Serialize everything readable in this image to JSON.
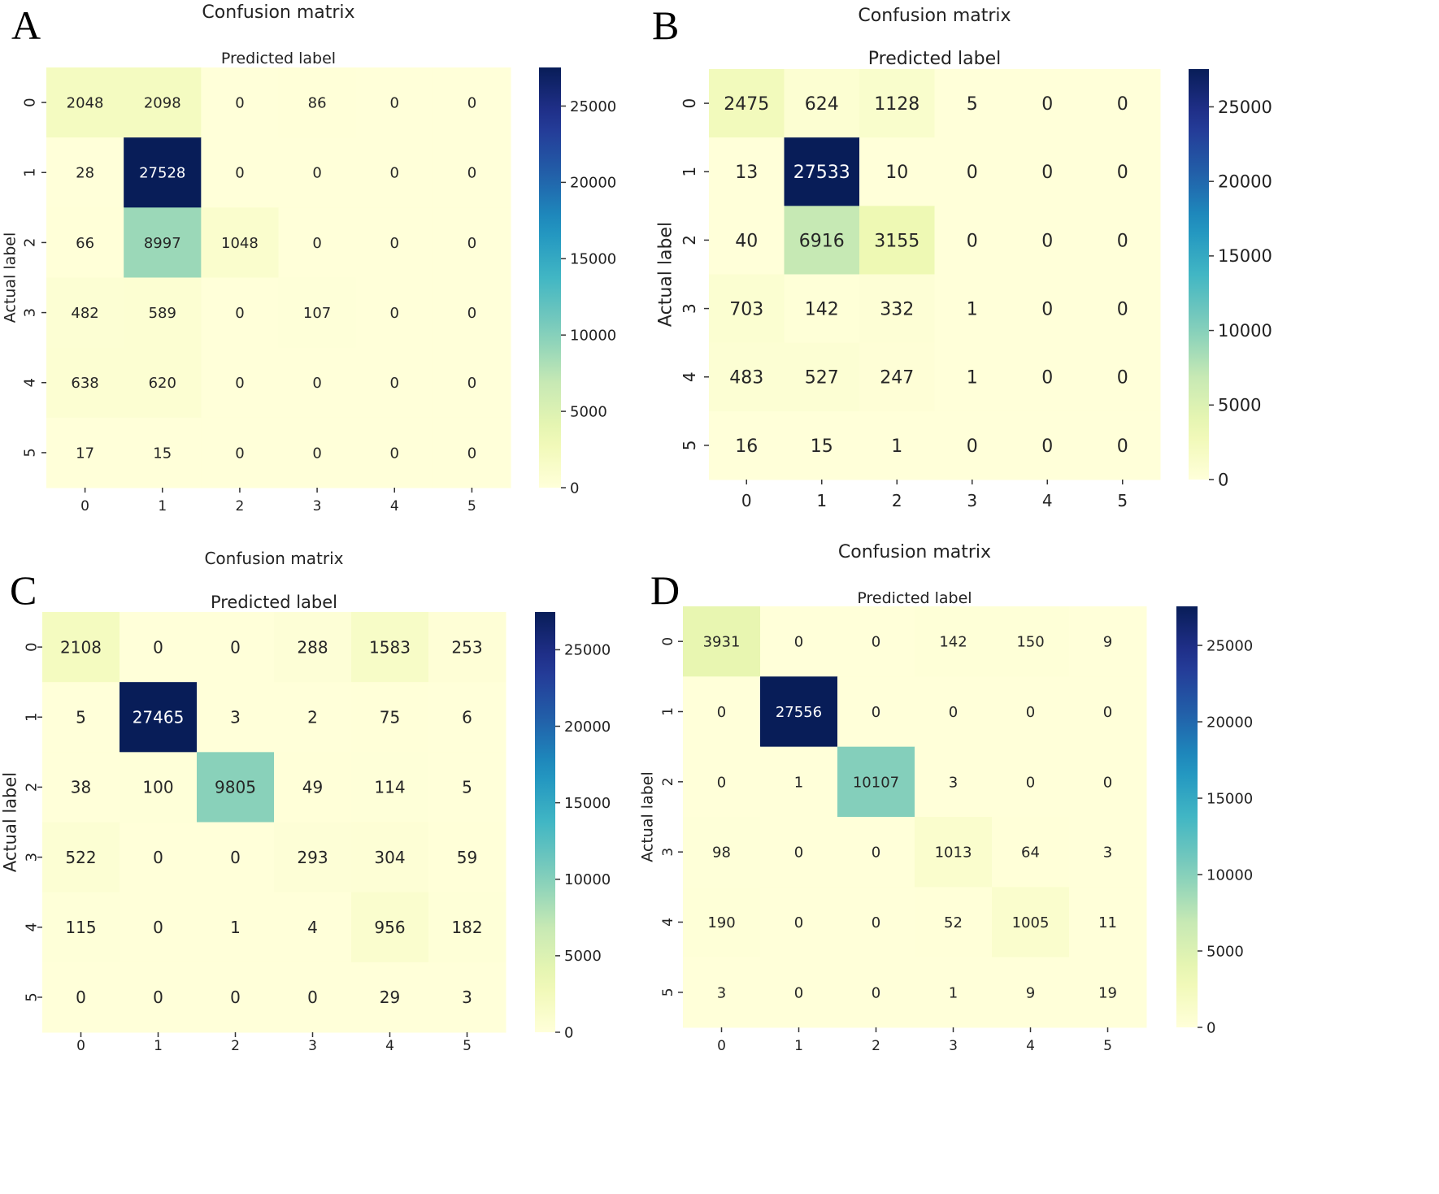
{
  "chart_data": [
    {
      "type": "heatmap",
      "panel": "A",
      "title": "Confusion matrix",
      "xlabel": "Predicted label",
      "ylabel": "Actual label",
      "x_ticks": [
        "0",
        "1",
        "2",
        "3",
        "4",
        "5"
      ],
      "y_ticks": [
        "0",
        "1",
        "2",
        "3",
        "4",
        "5"
      ],
      "matrix": [
        [
          2048,
          2098,
          0,
          86,
          0,
          0
        ],
        [
          28,
          27528,
          0,
          0,
          0,
          0
        ],
        [
          66,
          8997,
          1048,
          0,
          0,
          0
        ],
        [
          482,
          589,
          0,
          107,
          0,
          0
        ],
        [
          638,
          620,
          0,
          0,
          0,
          0
        ],
        [
          17,
          15,
          0,
          0,
          0,
          0
        ]
      ],
      "colorbar": {
        "colormap": "YlGnBu",
        "min": 0,
        "max": 27528,
        "ticks": [
          "0",
          "5000",
          "10000",
          "15000",
          "20000",
          "25000"
        ]
      }
    },
    {
      "type": "heatmap",
      "panel": "B",
      "title": "Confusion matrix",
      "xlabel": "Predicted label",
      "ylabel": "Actual label",
      "x_ticks": [
        "0",
        "1",
        "2",
        "3",
        "4",
        "5"
      ],
      "y_ticks": [
        "0",
        "1",
        "2",
        "3",
        "4",
        "5"
      ],
      "matrix": [
        [
          2475,
          624,
          1128,
          5,
          0,
          0
        ],
        [
          13,
          27533,
          10,
          0,
          0,
          0
        ],
        [
          40,
          6916,
          3155,
          0,
          0,
          0
        ],
        [
          703,
          142,
          332,
          1,
          0,
          0
        ],
        [
          483,
          527,
          247,
          1,
          0,
          0
        ],
        [
          16,
          15,
          1,
          0,
          0,
          0
        ]
      ],
      "colorbar": {
        "colormap": "YlGnBu",
        "min": 0,
        "max": 27533,
        "ticks": [
          "0",
          "5000",
          "10000",
          "15000",
          "20000",
          "25000"
        ]
      }
    },
    {
      "type": "heatmap",
      "panel": "C",
      "title": "Confusion matrix",
      "xlabel": "Predicted label",
      "ylabel": "Actual label",
      "x_ticks": [
        "0",
        "1",
        "2",
        "3",
        "4",
        "5"
      ],
      "y_ticks": [
        "0",
        "1",
        "2",
        "3",
        "4",
        "5"
      ],
      "matrix": [
        [
          2108,
          0,
          0,
          288,
          1583,
          253
        ],
        [
          5,
          27465,
          3,
          2,
          75,
          6
        ],
        [
          38,
          100,
          9805,
          49,
          114,
          5
        ],
        [
          522,
          0,
          0,
          293,
          304,
          59
        ],
        [
          115,
          0,
          1,
          4,
          956,
          182
        ],
        [
          0,
          0,
          0,
          0,
          29,
          3
        ]
      ],
      "colorbar": {
        "colormap": "YlGnBu",
        "min": 0,
        "max": 27465,
        "ticks": [
          "0",
          "5000",
          "10000",
          "15000",
          "20000",
          "25000"
        ]
      }
    },
    {
      "type": "heatmap",
      "panel": "D",
      "title": "Confusion matrix",
      "xlabel": "Predicted label",
      "ylabel": "Actual label",
      "x_ticks": [
        "0",
        "1",
        "2",
        "3",
        "4",
        "5"
      ],
      "y_ticks": [
        "0",
        "1",
        "2",
        "3",
        "4",
        "5"
      ],
      "matrix": [
        [
          3931,
          0,
          0,
          142,
          150,
          9
        ],
        [
          0,
          27556,
          0,
          0,
          0,
          0
        ],
        [
          0,
          1,
          10107,
          3,
          0,
          0
        ],
        [
          98,
          0,
          0,
          1013,
          64,
          3
        ],
        [
          190,
          0,
          0,
          52,
          1005,
          11
        ],
        [
          3,
          0,
          0,
          1,
          9,
          19
        ]
      ],
      "colorbar": {
        "colormap": "YlGnBu",
        "min": 0,
        "max": 27556,
        "ticks": [
          "0",
          "5000",
          "10000",
          "15000",
          "20000",
          "25000"
        ]
      }
    }
  ]
}
